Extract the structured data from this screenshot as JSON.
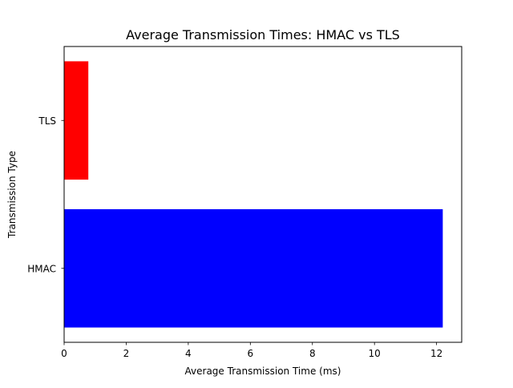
{
  "chart_data": {
    "type": "bar",
    "orientation": "horizontal",
    "title": "Average Transmission Times: HMAC vs TLS",
    "xlabel": "Average Transmission Time (ms)",
    "ylabel": "Transmission Type",
    "categories": [
      "HMAC",
      "TLS"
    ],
    "values": [
      12.2,
      0.78
    ],
    "colors": [
      "#0000ff",
      "#ff0000"
    ],
    "xlim": [
      0,
      12.81
    ],
    "xticks": [
      0,
      2,
      4,
      6,
      8,
      10,
      12
    ],
    "xtick_labels": [
      "0",
      "2",
      "4",
      "6",
      "8",
      "10",
      "12"
    ],
    "grid": false,
    "legend": "none"
  }
}
